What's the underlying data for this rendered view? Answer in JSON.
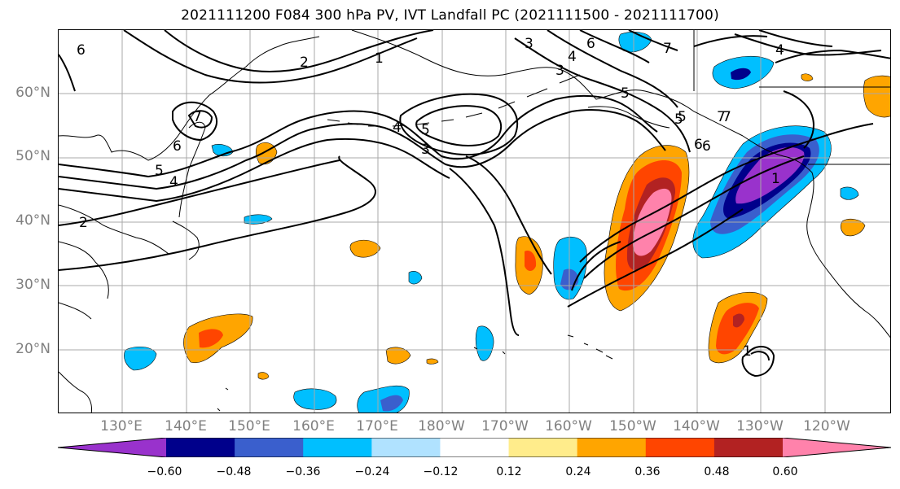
{
  "title": "2021111200 F084 300 hPa PV, IVT Landfall PC (2021111500 - 2021111700)",
  "lat_labels": [
    "60°N",
    "50°N",
    "40°N",
    "30°N",
    "20°N"
  ],
  "lon_labels": [
    "130°E",
    "140°E",
    "150°E",
    "160°E",
    "170°E",
    "180°W",
    "170°W",
    "160°W",
    "150°W",
    "140°W",
    "130°W",
    "120°W"
  ],
  "colorbar": {
    "colors": [
      "#9932cc",
      "#00008b",
      "#3a5fcd",
      "#00bfff",
      "#b0e2ff",
      "#ffffff",
      "#ffec8b",
      "#ffa500",
      "#ff4500",
      "#b22222",
      "#ff82ab"
    ],
    "tick_labels": [
      "−0.60",
      "−0.48",
      "−0.36",
      "−0.24",
      "−0.12",
      "0.12",
      "0.24",
      "0.36",
      "0.48",
      "0.60"
    ]
  },
  "contour_labels": [
    "6",
    "2",
    "1",
    "3",
    "5",
    "4",
    "5",
    "3",
    "6",
    "7",
    "3",
    "4",
    "7",
    "6",
    "5",
    "4",
    "2",
    "4",
    "5",
    "6",
    "7",
    "5",
    "6",
    "7",
    "1",
    "1"
  ]
}
